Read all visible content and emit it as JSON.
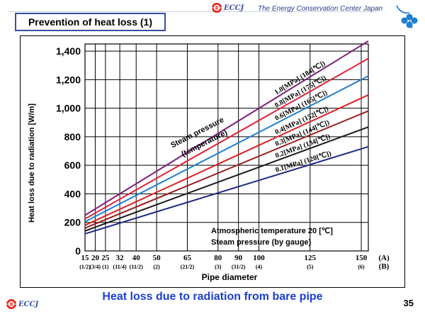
{
  "slide": {
    "title": "Prevention of heat loss (1)",
    "logo_text": "ECCJ",
    "organization": "The Energy Conservation Center Japan",
    "caption": "Heat loss due to radiation from bare pipe",
    "page_number": "35"
  },
  "chart_data": {
    "type": "line",
    "title": "",
    "xlabel": "Pipe diameter",
    "ylabel": "Heat loss due to radiation [W/m]",
    "ylim": [
      0,
      1450
    ],
    "yticks": [
      0,
      200,
      400,
      600,
      800,
      1000,
      1200,
      1400
    ],
    "ytick_labels": [
      "0",
      "200",
      "400",
      "600",
      "800",
      "1,000",
      "1,200",
      "1,400"
    ],
    "grid": true,
    "x_categories_A": [
      "15",
      "20",
      "25",
      "32",
      "40",
      "50",
      "65",
      "80",
      "90",
      "100",
      "125",
      "150"
    ],
    "x_categories_B": [
      "(1/2)",
      "(3/4)",
      "(1)",
      "(11/4)",
      "(11/2)",
      "(2)",
      "(21/2)",
      "(3)",
      "(31/2)",
      "(4)",
      "(5)",
      "(6)"
    ],
    "x_major": [
      "15",
      "20",
      "25",
      "32",
      "40",
      "50",
      "65",
      "80",
      "90",
      "100",
      "125",
      "150"
    ],
    "x_unit_A": "(A)",
    "x_unit_B": "(B)",
    "x_values_mm": [
      15,
      150
    ],
    "series": [
      {
        "name": "1.0[MPa] (184[℃])",
        "color": "#7a1f7a",
        "values": [
          250,
          1440
        ]
      },
      {
        "name": "0.8[MPa] (175[℃])",
        "color": "#e0233a",
        "values": [
          225,
          1320
        ]
      },
      {
        "name": "0.6[MPa] (165[℃])",
        "color": "#1f7fd0",
        "values": [
          205,
          1200
        ]
      },
      {
        "name": "0.4[MPa] (152[℃])",
        "color": "#d92020",
        "values": [
          180,
          1070
        ]
      },
      {
        "name": "0.3[MPa] (144[℃])",
        "color": "#9a1f1f",
        "values": [
          160,
          960
        ]
      },
      {
        "name": "0.2[MPa] (134[℃])",
        "color": "#1a1a1a",
        "values": [
          140,
          850
        ]
      },
      {
        "name": "0.1[MPa] (120[℃])",
        "color": "#1f2a80",
        "values": [
          120,
          715
        ]
      }
    ],
    "annotations": {
      "steam_label": "Steam pressure (temperature)",
      "conditions_line1": "Atmospheric temperature 20 [℃]",
      "conditions_line2": "Steam pressure (by gauge)"
    }
  }
}
